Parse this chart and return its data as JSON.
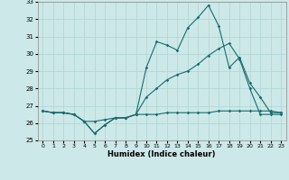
{
  "xlabel": "Humidex (Indice chaleur)",
  "ylabel": "",
  "background_color": "#cce8e8",
  "grid_color": "#b0d4d4",
  "line_color": "#1a6b6b",
  "xlim": [
    -0.5,
    23.5
  ],
  "ylim": [
    25,
    33
  ],
  "yticks": [
    25,
    26,
    27,
    28,
    29,
    30,
    31,
    32,
    33
  ],
  "xticks": [
    0,
    1,
    2,
    3,
    4,
    5,
    6,
    7,
    8,
    9,
    10,
    11,
    12,
    13,
    14,
    15,
    16,
    17,
    18,
    19,
    20,
    21,
    22,
    23
  ],
  "series1": [
    26.7,
    26.6,
    26.6,
    26.5,
    26.1,
    25.4,
    25.9,
    26.3,
    26.3,
    26.5,
    29.2,
    30.7,
    30.5,
    30.2,
    31.5,
    32.1,
    32.8,
    31.6,
    29.2,
    29.8,
    28.3,
    27.5,
    26.6,
    26.6
  ],
  "series2": [
    26.7,
    26.6,
    26.6,
    26.5,
    26.1,
    25.4,
    25.9,
    26.3,
    26.3,
    26.5,
    27.5,
    28.0,
    28.5,
    28.8,
    29.0,
    29.4,
    29.9,
    30.3,
    30.6,
    29.7,
    28.0,
    26.5,
    26.5,
    26.5
  ],
  "series3": [
    26.7,
    26.6,
    26.6,
    26.5,
    26.1,
    26.1,
    26.2,
    26.3,
    26.3,
    26.5,
    26.5,
    26.5,
    26.6,
    26.6,
    26.6,
    26.6,
    26.6,
    26.7,
    26.7,
    26.7,
    26.7,
    26.7,
    26.7,
    26.6
  ]
}
